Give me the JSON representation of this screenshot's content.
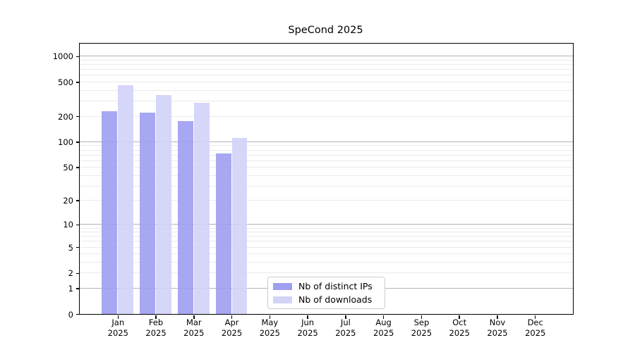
{
  "title": "SpeCond 2025",
  "chart_data": {
    "type": "bar",
    "title": "SpeCond 2025",
    "y_scale": "log10(value+1)",
    "ylim": [
      0,
      1400
    ],
    "yticks": [
      1000,
      500,
      200,
      100,
      50,
      20,
      10,
      5,
      2,
      1,
      0
    ],
    "major_grid_values": [
      1,
      10,
      100,
      1000
    ],
    "grid": "horizontal major+minor, on",
    "categories": [
      "Jan",
      "Feb",
      "Mar",
      "Apr",
      "May",
      "Jun",
      "Jul",
      "Aug",
      "Sep",
      "Oct",
      "Nov",
      "Dec"
    ],
    "category_year": "2025",
    "series": [
      {
        "name": "Nb of distinct IPs",
        "color": "#9f9ff1",
        "values": [
          227,
          218,
          175,
          73,
          0,
          0,
          0,
          0,
          0,
          0,
          0,
          0
        ]
      },
      {
        "name": "Nb of downloads",
        "color": "#d3d3f8",
        "values": [
          460,
          350,
          289,
          112,
          0,
          0,
          0,
          0,
          0,
          0,
          0,
          0
        ]
      }
    ],
    "legend_position": "bottom-center"
  },
  "colors": {
    "distinct_ips_bar": "#9f9ff1",
    "downloads_bar": "#d3d3f8",
    "major_grid": "#b3b3b3",
    "minor_grid": "#eaeaea",
    "axis_spine": "#000000",
    "legend_border": "#cccccc",
    "background": "#ffffff",
    "text": "#000000"
  }
}
